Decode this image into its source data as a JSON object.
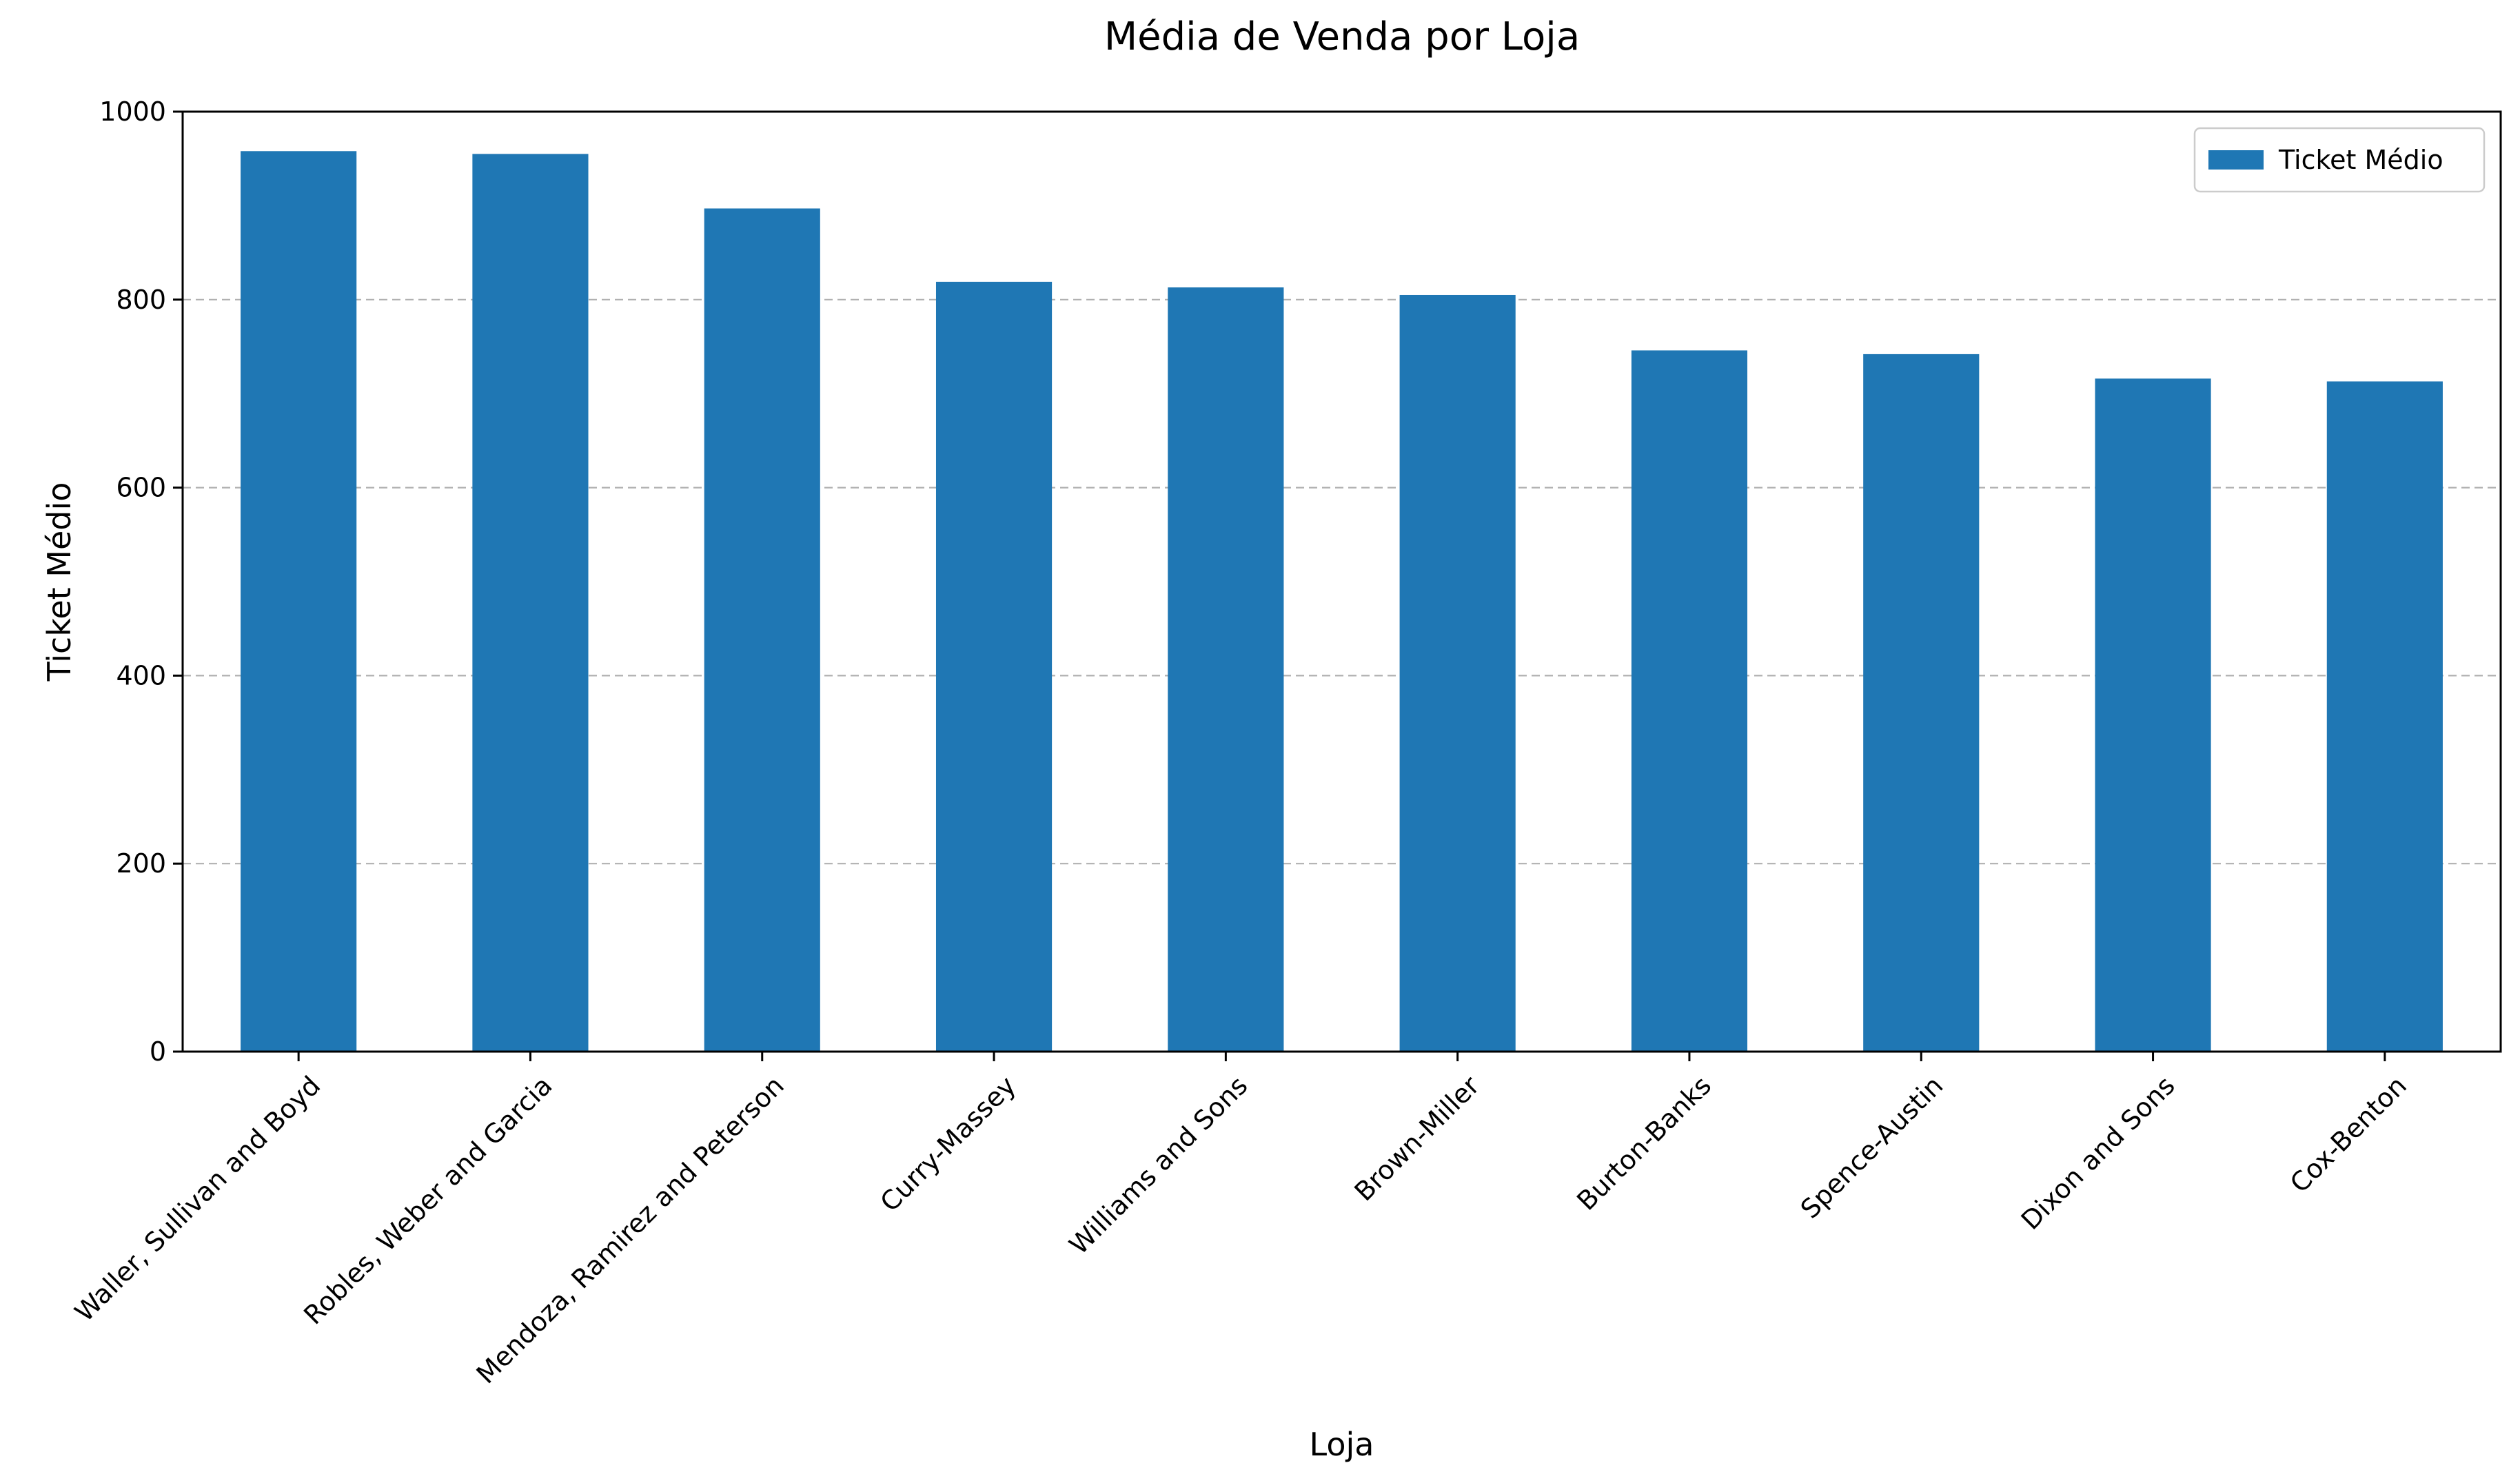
{
  "chart_data": {
    "type": "bar",
    "title": "Média de Venda por Loja",
    "xlabel": "Loja",
    "ylabel": "Ticket Médio",
    "categories": [
      "Waller, Sullivan and Boyd",
      "Robles, Weber and Garcia",
      "Mendoza, Ramirez and Peterson",
      "Curry-Massey",
      "Williams and Sons",
      "Brown-Miller",
      "Burton-Banks",
      "Spence-Austin",
      "Dixon and Sons",
      "Cox-Benton"
    ],
    "series": [
      {
        "name": "Ticket Médio",
        "color": "#1f77b4",
        "values": [
          958,
          955,
          897,
          819,
          813,
          805,
          746,
          742,
          716,
          713
        ]
      }
    ],
    "ylim": [
      0,
      1000
    ],
    "yticks": [
      0,
      200,
      400,
      600,
      800,
      1000
    ],
    "grid": {
      "y": true,
      "x": false,
      "style": "dashed"
    },
    "legend": {
      "position": "top-right"
    }
  }
}
